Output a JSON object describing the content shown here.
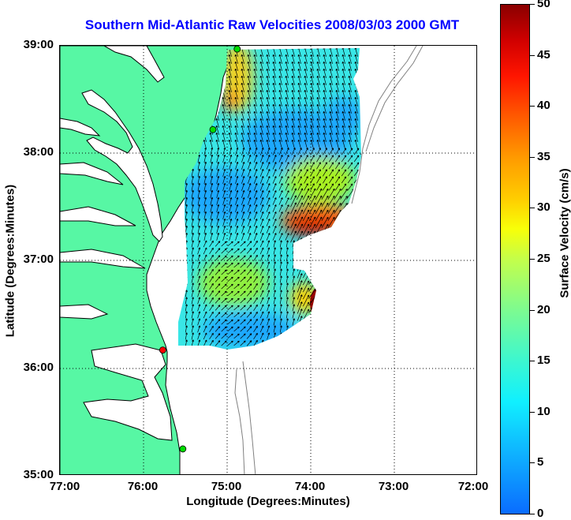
{
  "title": "Southern Mid-Atlantic Raw Velocities 2008/03/03 2000 GMT",
  "axes": {
    "xlabel": "Longitude (Degrees:Minutes)",
    "ylabel": "Latitude (Degrees:Minutes)",
    "x_ticks": [
      "77:00",
      "76:00",
      "75:00",
      "74:00",
      "73:00",
      "72:00"
    ],
    "y_ticks": [
      "39:00",
      "38:00",
      "37:00",
      "36:00",
      "35:00"
    ],
    "xlim": [
      -77,
      -72
    ],
    "ylim": [
      35,
      39
    ],
    "grid": true
  },
  "colorbar": {
    "label": "Surface Velocity (cm/s)",
    "ticks": [
      "50",
      "45",
      "40",
      "35",
      "30",
      "25",
      "20",
      "15",
      "10",
      "5",
      "0"
    ],
    "range": [
      0,
      50
    ],
    "colormap": "jet"
  },
  "colors": {
    "land": "#57f7a4",
    "water": "#ffffff",
    "title": "#0000ff",
    "bathymetry": "#808080",
    "station_active": "#00dd00",
    "station_inactive": "#ff0000"
  },
  "stations": [
    {
      "lon": -74.88,
      "lat": 38.97,
      "status": "active"
    },
    {
      "lon": -75.17,
      "lat": 38.22,
      "status": "active"
    },
    {
      "lon": -75.77,
      "lat": 36.17,
      "status": "inactive"
    },
    {
      "lon": -75.53,
      "lat": 35.25,
      "status": "active"
    }
  ]
}
